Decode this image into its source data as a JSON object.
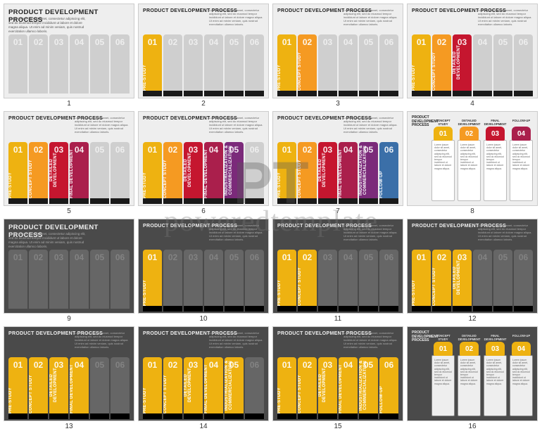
{
  "watermark": {
    "text": "poweredtemplate",
    "logo": "PT"
  },
  "common": {
    "title": "PRODUCT DEVELOPMENT PROCESS",
    "lorem_short": "Lorem ipsum dolor sit amet, consectetur adipiscing elit, sed do eiusmod tempor incididunt ut labore et dolore magna aliqua.",
    "lorem_block": "Lorem ipsum dolor sit amet, consectetur adipiscing elit, sed do eiusmod tempor incididunt ut labore et dolore magna aliqua. Ut enim ad minim veniam, quis nostrud exercitation ullamco laboris.",
    "stage_labels": [
      "PRE-STUDY",
      "CONCEPT STUDY",
      "DETAILED DEVELOPMENT",
      "FINAL DEVELOPMENT",
      "INDUSTRIALIZATION & COMMERCIALIZATION",
      "FOLLOW-UP"
    ],
    "nums": [
      "01",
      "02",
      "03",
      "04",
      "05",
      "06"
    ],
    "summary_labels": [
      "CONCEPT STUDY",
      "DETAILED DEVELOPMENT",
      "FINAL DEVELOPMENT",
      "FOLLOW-UP"
    ],
    "summary_nums": [
      "01",
      "02",
      "03",
      "04"
    ]
  },
  "palette_a": [
    "#eeb211",
    "#f59a22",
    "#c5162f",
    "#aa1f4c",
    "#7b2a7a",
    "#3b6fa8"
  ],
  "palette_b": [
    "#eeb211",
    "#eeb211",
    "#eeb211",
    "#eeb211",
    "#eeb211",
    "#eeb211"
  ],
  "palette_8": [
    "#eeb211",
    "#f59a22",
    "#c5162f",
    "#aa1f4c"
  ],
  "palette_16": [
    "#eeb211",
    "#eeb211",
    "#eeb211",
    "#eeb211"
  ],
  "slides": [
    {
      "n": 1,
      "variant": "light",
      "layout": "title6",
      "active": 0,
      "palette": "a",
      "big": true,
      "toptext": false
    },
    {
      "n": 2,
      "variant": "light",
      "layout": "std6",
      "active": 1,
      "palette": "a"
    },
    {
      "n": 3,
      "variant": "light",
      "layout": "std6",
      "active": 2,
      "palette": "a"
    },
    {
      "n": 4,
      "variant": "light",
      "layout": "std6",
      "active": 3,
      "palette": "a"
    },
    {
      "n": 5,
      "variant": "light",
      "layout": "std6",
      "active": 4,
      "palette": "a"
    },
    {
      "n": 6,
      "variant": "light",
      "layout": "std6",
      "active": 5,
      "palette": "a"
    },
    {
      "n": 7,
      "variant": "light",
      "layout": "std6",
      "active": 6,
      "palette": "a"
    },
    {
      "n": 8,
      "variant": "light",
      "layout": "sum4",
      "palette": "8"
    },
    {
      "n": 9,
      "variant": "dark",
      "layout": "title6",
      "active": 0,
      "palette": "b",
      "big": true,
      "toptext": false
    },
    {
      "n": 10,
      "variant": "dark",
      "layout": "std6",
      "active": 1,
      "palette": "b"
    },
    {
      "n": 11,
      "variant": "dark",
      "layout": "std6",
      "active": 2,
      "palette": "b"
    },
    {
      "n": 12,
      "variant": "dark",
      "layout": "std6",
      "active": 3,
      "palette": "b"
    },
    {
      "n": 13,
      "variant": "dark",
      "layout": "std6",
      "active": 4,
      "palette": "b"
    },
    {
      "n": 14,
      "variant": "dark",
      "layout": "std6",
      "active": 5,
      "palette": "b"
    },
    {
      "n": 15,
      "variant": "dark",
      "layout": "std6",
      "active": 6,
      "palette": "b"
    },
    {
      "n": 16,
      "variant": "dark",
      "layout": "sum4",
      "palette": "16"
    }
  ]
}
